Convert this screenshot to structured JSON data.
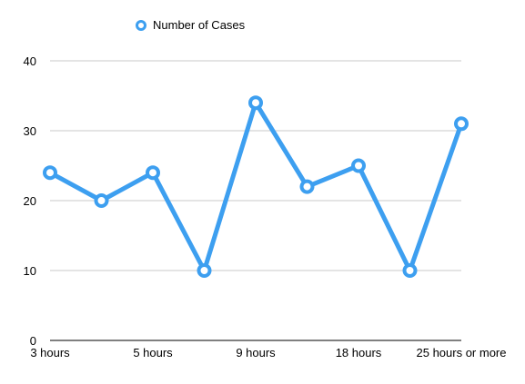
{
  "chart_data": {
    "type": "line",
    "title": "",
    "xlabel": "",
    "ylabel": "",
    "ylim": [
      0,
      40
    ],
    "yticks": [
      0,
      10,
      20,
      30,
      40
    ],
    "grid": true,
    "legend_position": "top-left",
    "x_tick_labels": [
      "3 hours",
      "5 hours",
      "9 hours",
      "18 hours",
      "25 hours or more"
    ],
    "categories": [
      "3 hours",
      "",
      "5 hours",
      "",
      "9 hours",
      "",
      "18 hours",
      "",
      "25 hours or more"
    ],
    "series": [
      {
        "name": "Number of Cases",
        "color": "#3d9ff0",
        "values": [
          24,
          20,
          24,
          10,
          34,
          22,
          25,
          10,
          31
        ]
      }
    ]
  }
}
